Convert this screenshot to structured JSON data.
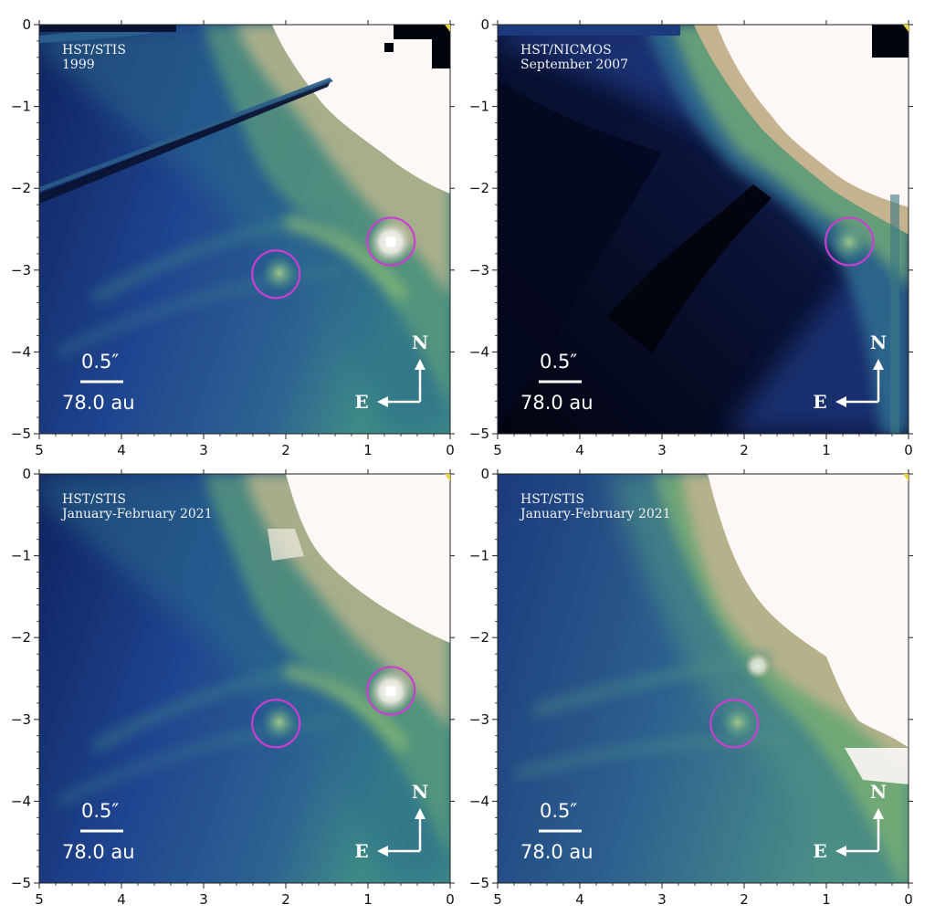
{
  "figure": {
    "colors": {
      "deep": "#05081a",
      "navy": "#14286a",
      "blue": "#27509a",
      "teal": "#3b7f86",
      "green": "#84b46c",
      "tan": "#c9b08e",
      "white": "#fdf7f6",
      "circle": "#c93ed0",
      "arrow": "#ffffff"
    },
    "panels": [
      {
        "label_line1": "HST/STIS",
        "label_line2": "1999",
        "scale_arcsec": "0.5″",
        "scale_au": "78.0 au",
        "north": "N",
        "east": "E",
        "circles": [
          [
            2.12,
            -3.05
          ],
          [
            0.72,
            -2.65
          ]
        ]
      },
      {
        "label_line1": "HST/NICMOS",
        "label_line2": "September 2007",
        "scale_arcsec": "0.5″",
        "scale_au": "78.0 au",
        "north": "N",
        "east": "E",
        "circles": [
          [
            0.72,
            -2.65
          ]
        ]
      },
      {
        "label_line1": "HST/STIS",
        "label_line2": "January-February 2021",
        "scale_arcsec": "0.5″",
        "scale_au": "78.0 au",
        "north": "N",
        "east": "E",
        "circles": [
          [
            2.12,
            -3.05
          ],
          [
            0.72,
            -2.65
          ]
        ]
      },
      {
        "label_line1": "HST/STIS",
        "label_line2": "January-February 2021",
        "scale_arcsec": "0.5″",
        "scale_au": "78.0 au",
        "north": "N",
        "east": "E",
        "circles": [
          [
            2.12,
            -3.05
          ]
        ]
      }
    ],
    "axes": {
      "xlim": [
        5,
        0
      ],
      "ylim": [
        -5,
        0
      ],
      "x_ticks": [
        "5",
        "4",
        "3",
        "2",
        "1",
        "0"
      ],
      "y_ticks": [
        "0",
        "−1",
        "−2",
        "−3",
        "−4",
        "−5"
      ]
    }
  }
}
